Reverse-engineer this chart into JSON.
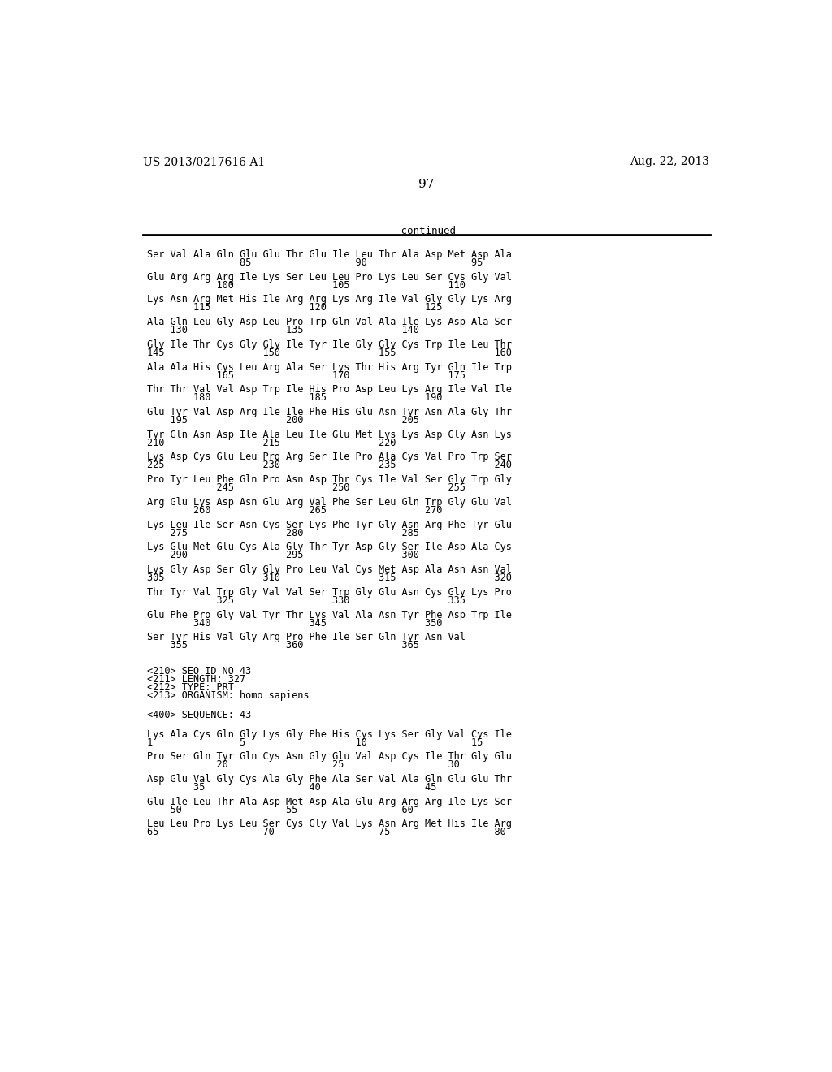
{
  "bg_color": "#ffffff",
  "header_left": "US 2013/0217616 A1",
  "header_right": "Aug. 22, 2013",
  "page_number": "97",
  "continued_label": "-continued",
  "content": [
    {
      "type": "seq",
      "text": "Ser Val Ala Gln Glu Glu Thr Glu Ile Leu Thr Ala Asp Met Asp Ala"
    },
    {
      "type": "num",
      "text": "                85                  90                  95"
    },
    {
      "type": "seq",
      "text": "Glu Arg Arg Arg Ile Lys Ser Leu Leu Pro Lys Leu Ser Cys Gly Val"
    },
    {
      "type": "num",
      "text": "            100                 105                 110"
    },
    {
      "type": "seq",
      "text": "Lys Asn Arg Met His Ile Arg Arg Lys Arg Ile Val Gly Gly Lys Arg"
    },
    {
      "type": "num",
      "text": "        115                 120                 125"
    },
    {
      "type": "seq",
      "text": "Ala Gln Leu Gly Asp Leu Pro Trp Gln Val Ala Ile Lys Asp Ala Ser"
    },
    {
      "type": "num",
      "text": "    130                 135                 140"
    },
    {
      "type": "seq",
      "text": "Gly Ile Thr Cys Gly Gly Ile Tyr Ile Gly Gly Cys Trp Ile Leu Thr"
    },
    {
      "type": "num",
      "text": "145                 150                 155                 160"
    },
    {
      "type": "seq",
      "text": "Ala Ala His Cys Leu Arg Ala Ser Lys Thr His Arg Tyr Gln Ile Trp"
    },
    {
      "type": "num",
      "text": "            165                 170                 175"
    },
    {
      "type": "seq",
      "text": "Thr Thr Val Val Asp Trp Ile His Pro Asp Leu Lys Arg Ile Val Ile"
    },
    {
      "type": "num",
      "text": "        180                 185                 190"
    },
    {
      "type": "seq",
      "text": "Glu Tyr Val Asp Arg Ile Ile Phe His Glu Asn Tyr Asn Ala Gly Thr"
    },
    {
      "type": "num",
      "text": "    195                 200                 205"
    },
    {
      "type": "seq",
      "text": "Tyr Gln Asn Asp Ile Ala Leu Ile Glu Met Lys Lys Asp Gly Asn Lys"
    },
    {
      "type": "num",
      "text": "210                 215                 220"
    },
    {
      "type": "seq",
      "text": "Lys Asp Cys Glu Leu Pro Arg Ser Ile Pro Ala Cys Val Pro Trp Ser"
    },
    {
      "type": "num",
      "text": "225                 230                 235                 240"
    },
    {
      "type": "seq",
      "text": "Pro Tyr Leu Phe Gln Pro Asn Asp Thr Cys Ile Val Ser Gly Trp Gly"
    },
    {
      "type": "num",
      "text": "            245                 250                 255"
    },
    {
      "type": "seq",
      "text": "Arg Glu Lys Asp Asn Glu Arg Val Phe Ser Leu Gln Trp Gly Glu Val"
    },
    {
      "type": "num",
      "text": "        260                 265                 270"
    },
    {
      "type": "seq",
      "text": "Lys Leu Ile Ser Asn Cys Ser Lys Phe Tyr Gly Asn Arg Phe Tyr Glu"
    },
    {
      "type": "num",
      "text": "    275                 280                 285"
    },
    {
      "type": "seq",
      "text": "Lys Glu Met Glu Cys Ala Gly Thr Tyr Asp Gly Ser Ile Asp Ala Cys"
    },
    {
      "type": "num",
      "text": "    290                 295                 300"
    },
    {
      "type": "seq",
      "text": "Lys Gly Asp Ser Gly Gly Pro Leu Val Cys Met Asp Ala Asn Asn Val"
    },
    {
      "type": "num",
      "text": "305                 310                 315                 320"
    },
    {
      "type": "seq",
      "text": "Thr Tyr Val Trp Gly Val Val Ser Trp Gly Glu Asn Cys Gly Lys Pro"
    },
    {
      "type": "num",
      "text": "            325                 330                 335"
    },
    {
      "type": "seq",
      "text": "Glu Phe Pro Gly Val Tyr Thr Lys Val Ala Asn Tyr Phe Asp Trp Ile"
    },
    {
      "type": "num",
      "text": "        340                 345                 350"
    },
    {
      "type": "seq",
      "text": "Ser Tyr His Val Gly Arg Pro Phe Ile Ser Gln Tyr Asn Val"
    },
    {
      "type": "num",
      "text": "    355                 360                 365"
    },
    {
      "type": "blank"
    },
    {
      "type": "meta",
      "text": "<210> SEQ ID NO 43"
    },
    {
      "type": "meta",
      "text": "<211> LENGTH: 327"
    },
    {
      "type": "meta",
      "text": "<212> TYPE: PRT"
    },
    {
      "type": "meta",
      "text": "<213> ORGANISM: homo sapiens"
    },
    {
      "type": "blank"
    },
    {
      "type": "meta",
      "text": "<400> SEQUENCE: 43"
    },
    {
      "type": "blank"
    },
    {
      "type": "seq",
      "text": "Lys Ala Cys Gln Gly Lys Gly Phe His Cys Lys Ser Gly Val Cys Ile"
    },
    {
      "type": "num",
      "text": "1               5                   10                  15"
    },
    {
      "type": "seq",
      "text": "Pro Ser Gln Tyr Gln Cys Asn Gly Glu Val Asp Cys Ile Thr Gly Glu"
    },
    {
      "type": "num",
      "text": "            20                  25                  30"
    },
    {
      "type": "seq",
      "text": "Asp Glu Val Gly Cys Ala Gly Phe Ala Ser Val Ala Gln Glu Glu Thr"
    },
    {
      "type": "num",
      "text": "        35                  40                  45"
    },
    {
      "type": "seq",
      "text": "Glu Ile Leu Thr Ala Asp Met Asp Ala Glu Arg Arg Arg Ile Lys Ser"
    },
    {
      "type": "num",
      "text": "    50                  55                  60"
    },
    {
      "type": "seq",
      "text": "Leu Leu Pro Lys Leu Ser Cys Gly Val Lys Asn Arg Met His Ile Arg"
    },
    {
      "type": "num",
      "text": "65                  70                  75                  80"
    }
  ]
}
